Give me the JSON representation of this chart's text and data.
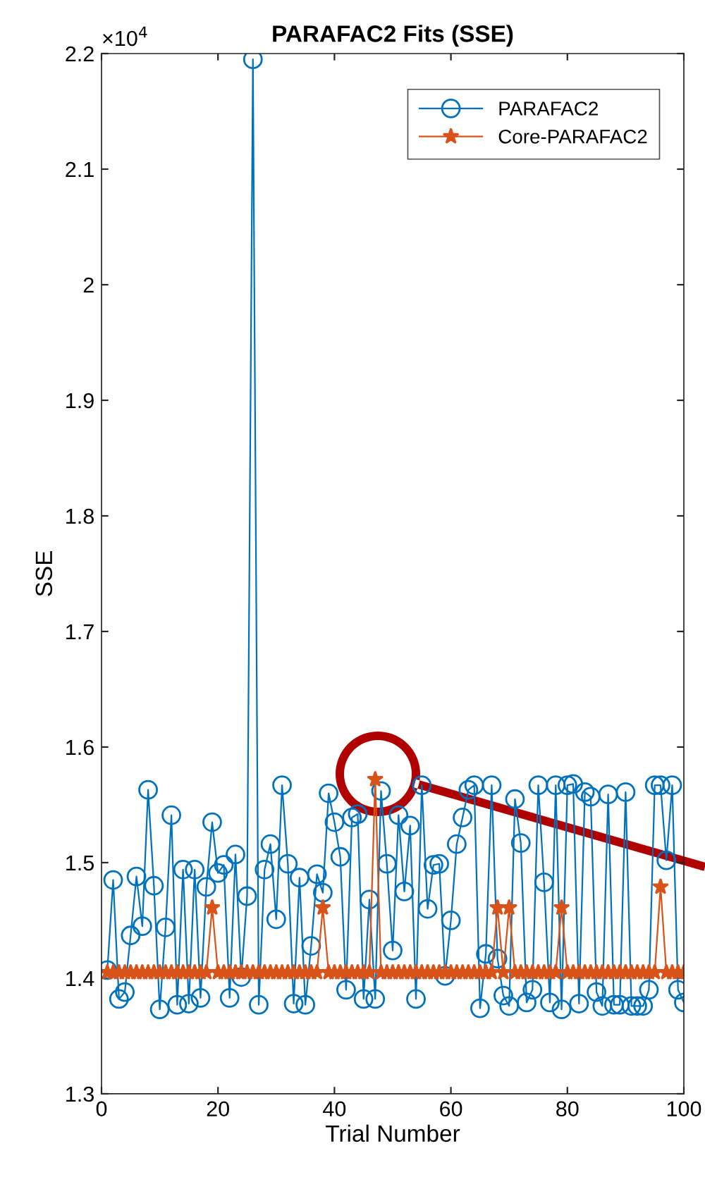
{
  "chart_data": {
    "type": "line",
    "title": "PARAFAC2 Fits (SSE)",
    "xlabel": "Trial Number",
    "ylabel": "SSE",
    "annotations": [
      "×10$^{4}$"
    ],
    "x": [
      1,
      2,
      3,
      4,
      5,
      6,
      7,
      8,
      9,
      10,
      11,
      12,
      13,
      14,
      15,
      16,
      17,
      18,
      19,
      20,
      21,
      22,
      23,
      24,
      25,
      26,
      27,
      28,
      29,
      30,
      31,
      32,
      33,
      34,
      35,
      36,
      37,
      38,
      39,
      40,
      41,
      42,
      43,
      44,
      45,
      46,
      47,
      48,
      49,
      50,
      51,
      52,
      53,
      54,
      55,
      56,
      57,
      58,
      59,
      60,
      61,
      62,
      63,
      64,
      65,
      66,
      67,
      68,
      69,
      70,
      71,
      72,
      73,
      74,
      75,
      76,
      77,
      78,
      79,
      80,
      81,
      82,
      83,
      84,
      85,
      86,
      87,
      88,
      89,
      90,
      91,
      92,
      93,
      94,
      95,
      96,
      97,
      98,
      99,
      100
    ],
    "series": [
      {
        "name": "PARAFAC2",
        "color": "#0072bd",
        "marker": "circle",
        "values": [
          1.407,
          1.485,
          1.382,
          1.388,
          1.437,
          1.488,
          1.445,
          1.563,
          1.48,
          1.373,
          1.444,
          1.541,
          1.377,
          1.494,
          1.378,
          1.494,
          1.383,
          1.479,
          1.535,
          1.491,
          1.498,
          1.383,
          1.507,
          1.401,
          1.471,
          2.195,
          1.377,
          1.494,
          1.516,
          1.451,
          1.567,
          1.499,
          1.378,
          1.487,
          1.377,
          1.428,
          1.49,
          1.474,
          1.56,
          1.535,
          1.505,
          1.39,
          1.539,
          1.542,
          1.382,
          1.468,
          1.382,
          1.562,
          1.499,
          1.424,
          1.541,
          1.475,
          1.532,
          1.382,
          1.567,
          1.46,
          1.498,
          1.499,
          1.402,
          1.45,
          1.516,
          1.539,
          1.563,
          1.567,
          1.374,
          1.421,
          1.567,
          1.417,
          1.385,
          1.376,
          1.555,
          1.517,
          1.379,
          1.39,
          1.567,
          1.483,
          1.379,
          1.567,
          1.373,
          1.567,
          1.568,
          1.378,
          1.561,
          1.557,
          1.388,
          1.376,
          1.559,
          1.377,
          1.377,
          1.561,
          1.376,
          1.376,
          1.376,
          1.39,
          1.567,
          1.567,
          1.502,
          1.567,
          1.39,
          1.379
        ]
      },
      {
        "name": "Core-PARAFAC2",
        "color": "#d95319",
        "marker": "star",
        "values": [
          1.405,
          1.405,
          1.405,
          1.405,
          1.405,
          1.405,
          1.405,
          1.405,
          1.405,
          1.405,
          1.405,
          1.405,
          1.405,
          1.405,
          1.405,
          1.405,
          1.405,
          1.405,
          1.461,
          1.405,
          1.405,
          1.405,
          1.405,
          1.405,
          1.405,
          1.405,
          1.405,
          1.405,
          1.405,
          1.405,
          1.405,
          1.405,
          1.405,
          1.405,
          1.405,
          1.405,
          1.405,
          1.461,
          1.405,
          1.405,
          1.405,
          1.405,
          1.405,
          1.405,
          1.405,
          1.405,
          1.572,
          1.405,
          1.405,
          1.405,
          1.405,
          1.405,
          1.405,
          1.405,
          1.405,
          1.405,
          1.405,
          1.405,
          1.405,
          1.405,
          1.405,
          1.405,
          1.405,
          1.405,
          1.405,
          1.405,
          1.405,
          1.461,
          1.405,
          1.461,
          1.405,
          1.405,
          1.405,
          1.405,
          1.405,
          1.405,
          1.405,
          1.405,
          1.461,
          1.405,
          1.405,
          1.405,
          1.405,
          1.405,
          1.405,
          1.405,
          1.405,
          1.405,
          1.405,
          1.405,
          1.405,
          1.405,
          1.405,
          1.405,
          1.405,
          1.479,
          1.405,
          1.405,
          1.405,
          1.405
        ]
      }
    ],
    "xlim": [
      0,
      100
    ],
    "xticks": [
      0,
      20,
      40,
      60,
      80,
      100
    ],
    "ylim": [
      1.3,
      2.2
    ],
    "yticks": [
      1.3,
      1.4,
      1.5,
      1.6,
      1.7,
      1.8,
      1.9,
      {
        "value": 2.0,
        "label": "2"
      },
      2.1,
      2.2
    ],
    "grid": false,
    "legend": "top right",
    "line_style": "solid"
  }
}
